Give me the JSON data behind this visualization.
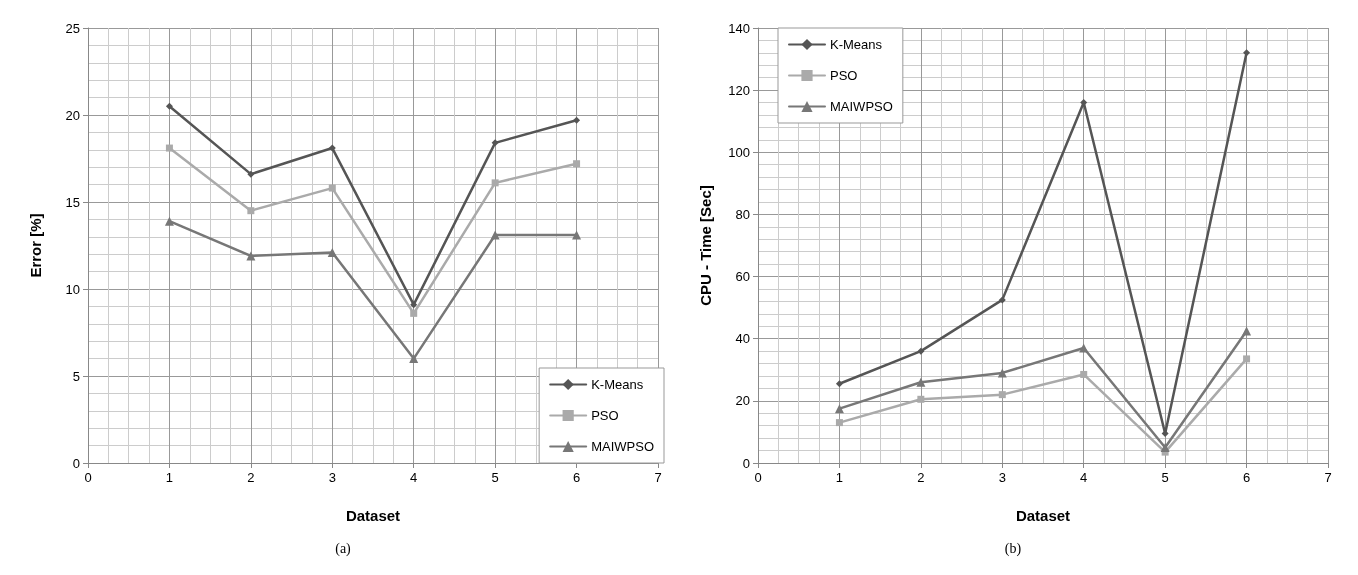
{
  "chart_data": [
    {
      "type": "line",
      "xlabel": "Dataset",
      "ylabel": "Error [%]",
      "x": [
        1,
        2,
        3,
        4,
        5,
        6
      ],
      "xlim": [
        0,
        7
      ],
      "xticks": [
        0,
        1,
        2,
        3,
        4,
        5,
        6,
        7
      ],
      "ylim": [
        0,
        25
      ],
      "yticks": [
        0,
        5,
        10,
        15,
        20,
        25
      ],
      "grid": true,
      "legend": "bottom right",
      "line_style": "solid",
      "annotations": [
        "(a)"
      ],
      "series": [
        {
          "name": "K-Means",
          "color": "#555555",
          "marker": "diamond",
          "values": [
            20.5,
            16.6,
            18.1,
            9.1,
            18.4,
            19.7
          ]
        },
        {
          "name": "PSO",
          "color": "#aaaaaa",
          "marker": "square",
          "values": [
            18.1,
            14.5,
            15.8,
            8.6,
            16.1,
            17.2
          ]
        },
        {
          "name": "MAIWPSO",
          "color": "#777777",
          "marker": "triangle",
          "values": [
            13.9,
            11.9,
            12.1,
            6.0,
            13.1,
            13.1
          ]
        }
      ]
    },
    {
      "type": "line",
      "xlabel": "Dataset",
      "ylabel": "CPU - Time [Sec]",
      "x": [
        1,
        2,
        3,
        4,
        5,
        6
      ],
      "xlim": [
        0,
        7
      ],
      "xticks": [
        0,
        1,
        2,
        3,
        4,
        5,
        6,
        7
      ],
      "ylim": [
        0,
        140
      ],
      "yticks": [
        0,
        20,
        40,
        60,
        80,
        100,
        120,
        140
      ],
      "grid": true,
      "legend": "top left",
      "line_style": "solid",
      "annotations": [
        "(b)"
      ],
      "series": [
        {
          "name": "K-Means",
          "color": "#555555",
          "marker": "diamond",
          "values": [
            25.5,
            36,
            52.5,
            116,
            9.5,
            132
          ]
        },
        {
          "name": "PSO",
          "color": "#aaaaaa",
          "marker": "square",
          "values": [
            13,
            20.5,
            22,
            28.5,
            3.5,
            33.5
          ]
        },
        {
          "name": "MAIWPSO",
          "color": "#777777",
          "marker": "triangle",
          "values": [
            17.5,
            26,
            29,
            37,
            5,
            42.5
          ]
        }
      ]
    }
  ]
}
